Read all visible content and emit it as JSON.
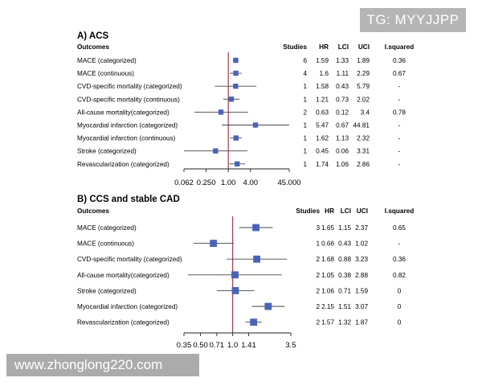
{
  "watermarks": {
    "top_right": "TG: MYYJJPP",
    "bottom_left": "www.zhonglong220.com"
  },
  "colors": {
    "marker": "#4a63b8",
    "reference_line": "#a63a4a",
    "ci_line": "#444444"
  },
  "chart_data": [
    {
      "type": "forest",
      "title": "A) ACS",
      "row_header": "Outcomes",
      "columns": [
        "Studies",
        "HR",
        "LCI",
        "UCI",
        "I.squared"
      ],
      "scale": "log2",
      "xlim": [
        0.0625,
        45
      ],
      "reference": 1,
      "ticks": [
        0.0625,
        0.25,
        1,
        4,
        45
      ],
      "tick_labels": [
        "0.062",
        "0.250",
        "1.00",
        "4.00",
        "45.000"
      ],
      "rows": [
        {
          "outcome": "MACE (categorized)",
          "studies": "6",
          "hr": 1.59,
          "lci": 1.33,
          "uci": 1.89,
          "hr_text": "1.59",
          "lci_text": "1.33",
          "uci_text": "1.89",
          "i2": "0.36"
        },
        {
          "outcome": "MACE (continuous)",
          "studies": "4",
          "hr": 1.6,
          "lci": 1.11,
          "uci": 2.29,
          "hr_text": "1.6",
          "lci_text": "1.11",
          "uci_text": "2.29",
          "i2": "0.67"
        },
        {
          "outcome": "CVD-specific mortality (categorized)",
          "studies": "1",
          "hr": 1.58,
          "lci": 0.43,
          "uci": 5.79,
          "hr_text": "1.58",
          "lci_text": "0.43",
          "uci_text": "5.79",
          "i2": "-"
        },
        {
          "outcome": "CVD-specific mortality (continuous)",
          "studies": "1",
          "hr": 1.21,
          "lci": 0.73,
          "uci": 2.02,
          "hr_text": "1.21",
          "lci_text": "0.73",
          "uci_text": "2.02",
          "i2": "-"
        },
        {
          "outcome": "All-cause mortality(categorized)",
          "studies": "2",
          "hr": 0.63,
          "lci": 0.12,
          "uci": 3.4,
          "hr_text": "0.63",
          "lci_text": "0.12",
          "uci_text": "3.4",
          "i2": "0.78"
        },
        {
          "outcome": "Myocardial infarction (categorized)",
          "studies": "1",
          "hr": 5.47,
          "lci": 0.67,
          "uci": 44.81,
          "hr_text": "5.47",
          "lci_text": "0.67",
          "uci_text": "44.81",
          "i2": "-"
        },
        {
          "outcome": "Myocardial infarction (continuous)",
          "studies": "1",
          "hr": 1.62,
          "lci": 1.13,
          "uci": 2.32,
          "hr_text": "1.62",
          "lci_text": "1.13",
          "uci_text": "2.32",
          "i2": "-"
        },
        {
          "outcome": "Stroke (categorized)",
          "studies": "1",
          "hr": 0.45,
          "lci": 0.06,
          "uci": 3.31,
          "hr_text": "0.45",
          "lci_text": "0.06",
          "uci_text": "3.31",
          "i2": "-"
        },
        {
          "outcome": "Revascularization (categorized)",
          "studies": "1",
          "hr": 1.74,
          "lci": 1.06,
          "uci": 2.86,
          "hr_text": "1.74",
          "lci_text": "1.06",
          "uci_text": "2.86",
          "i2": "-"
        }
      ]
    },
    {
      "type": "forest",
      "title": "B) CCS and stable CAD",
      "row_header": "Outcomes",
      "columns": [
        "Studies",
        "HR",
        "LCI",
        "UCI",
        "I.squared"
      ],
      "scale": "log2",
      "xlim": [
        0.35,
        3.5
      ],
      "reference": 1,
      "ticks": [
        0.35,
        0.5,
        0.71,
        1.0,
        1.41,
        3.5
      ],
      "tick_labels": [
        "0.35",
        "0.50",
        "0.71",
        "1.0",
        "1.41",
        "3.5"
      ],
      "rows": [
        {
          "outcome": "MACE (categorized)",
          "studies": "3",
          "hr": 1.65,
          "lci": 1.15,
          "uci": 2.37,
          "hr_text": "1.65",
          "lci_text": "1.15",
          "uci_text": "2.37",
          "i2": "0.65"
        },
        {
          "outcome": "MACE (continuous)",
          "studies": "1",
          "hr": 0.66,
          "lci": 0.43,
          "uci": 1.02,
          "hr_text": "0.66",
          "lci_text": "0.43",
          "uci_text": "1.02",
          "i2": "-"
        },
        {
          "outcome": "CVD-specific mortality (categorized)",
          "studies": "2",
          "hr": 1.68,
          "lci": 0.88,
          "uci": 3.23,
          "hr_text": "1.68",
          "lci_text": "0.88",
          "uci_text": "3.23",
          "i2": "0.36"
        },
        {
          "outcome": "All-cause mortality(categorized)",
          "studies": "2",
          "hr": 1.05,
          "lci": 0.38,
          "uci": 2.88,
          "hr_text": "1.05",
          "lci_text": "0.38",
          "uci_text": "2.88",
          "i2": "0.82"
        },
        {
          "outcome": "Stroke (categorized)",
          "studies": "2",
          "hr": 1.06,
          "lci": 0.71,
          "uci": 1.59,
          "hr_text": "1.06",
          "lci_text": "0.71",
          "uci_text": "1.59",
          "i2": "0"
        },
        {
          "outcome": "Myocardial infarction (categorized)",
          "studies": "2",
          "hr": 2.15,
          "lci": 1.51,
          "uci": 3.07,
          "hr_text": "2.15",
          "lci_text": "1.51",
          "uci_text": "3.07",
          "i2": "0"
        },
        {
          "outcome": "Revascularization (categorized)",
          "studies": "2",
          "hr": 1.57,
          "lci": 1.32,
          "uci": 1.87,
          "hr_text": "1.57",
          "lci_text": "1.32",
          "uci_text": "1.87",
          "i2": "0"
        }
      ]
    }
  ]
}
